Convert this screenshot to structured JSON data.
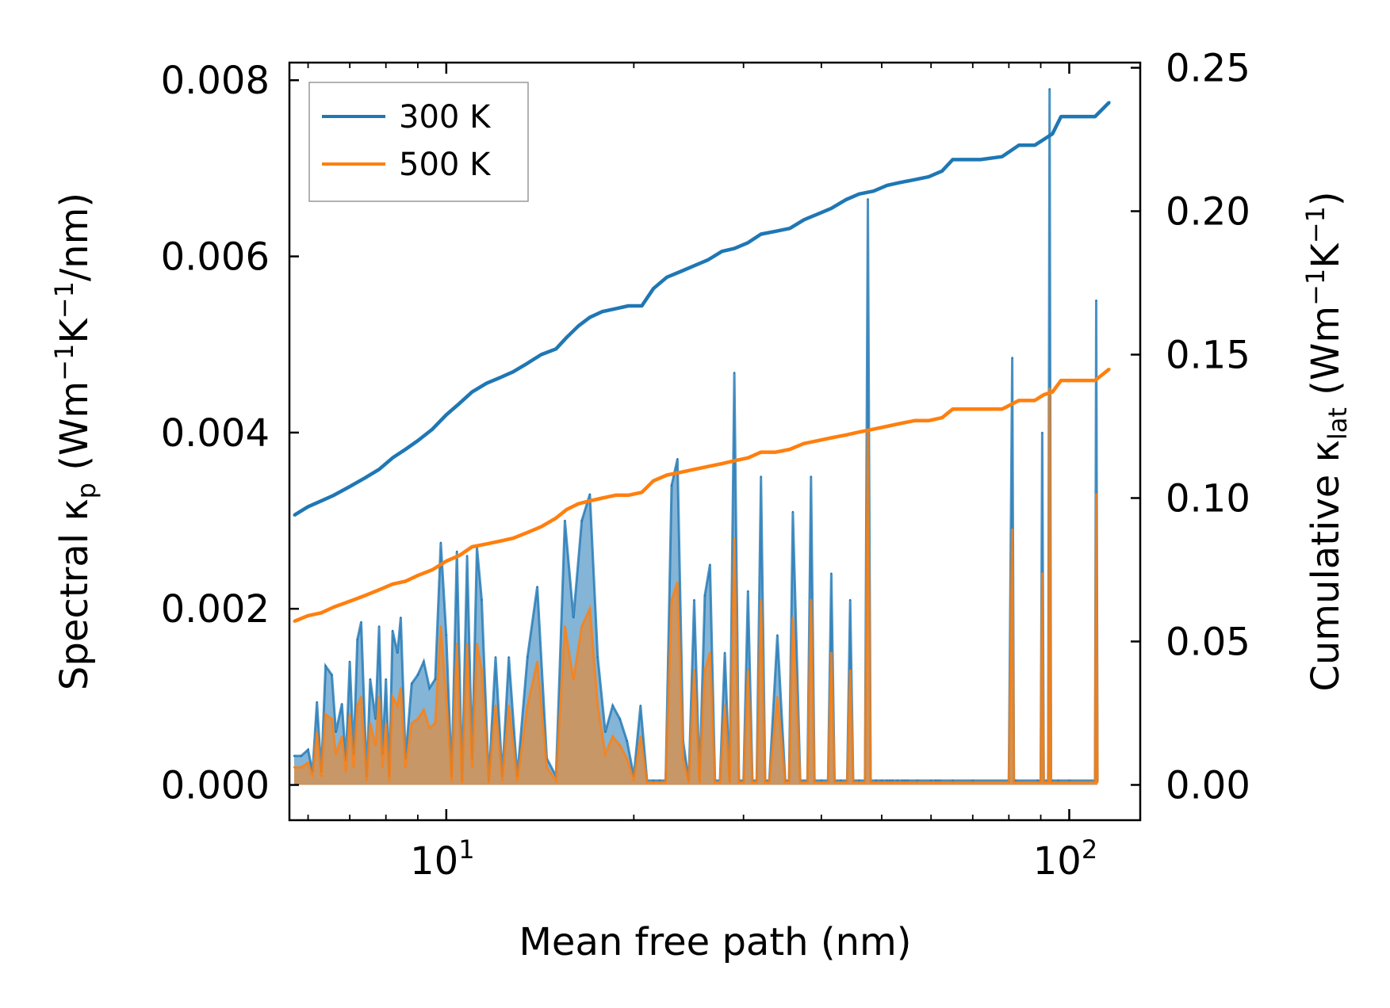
{
  "chart_data": {
    "type": "line",
    "title": "",
    "xlabel": "Mean free path (nm)",
    "xscale": "log",
    "xlim": [
      5.6,
      130
    ],
    "x_ticks": [
      {
        "value": 10,
        "base": "10",
        "exp": "1"
      },
      {
        "value": 100,
        "base": "10",
        "exp": "2"
      }
    ],
    "y_left": {
      "label": {
        "pre": "Spectral κ",
        "sub": "p",
        "post_a": " (Wm",
        "sup1": "−1",
        "post_b": "K",
        "sup2": "−1",
        "post_c": "/nm)"
      },
      "ylim": [
        -0.0004,
        0.0082
      ],
      "ticks": [
        0.0,
        0.002,
        0.004,
        0.006,
        0.008
      ],
      "tick_labels": [
        "0.000",
        "0.002",
        "0.004",
        "0.006",
        "0.008"
      ]
    },
    "y_right": {
      "label": {
        "pre": "Cumulative κ",
        "sub": "lat",
        "post_a": " (Wm",
        "sup1": "−1",
        "post_b": "K",
        "sup2": "−1",
        "post_c": ")"
      },
      "ylim": [
        -0.0123,
        0.2518
      ],
      "ticks": [
        0.0,
        0.05,
        0.1,
        0.15,
        0.2,
        0.25
      ],
      "tick_labels": [
        "0.00",
        "0.05",
        "0.10",
        "0.15",
        "0.20",
        "0.25"
      ]
    },
    "legend": {
      "position": "top-left",
      "entries": [
        {
          "name": "300 K",
          "color": "#1f77b4"
        },
        {
          "name": "500 K",
          "color": "#ff7f0e"
        }
      ]
    },
    "series": [
      {
        "name": "300 K",
        "color": "#1f77b4",
        "kind": "cumulative",
        "axis": "right",
        "x": [
          5.7,
          6.0,
          6.3,
          6.6,
          7.0,
          7.4,
          7.8,
          8.2,
          8.6,
          9.0,
          9.5,
          10.0,
          10.5,
          11.0,
          11.6,
          12.2,
          12.8,
          13.5,
          14.2,
          15.0,
          15.6,
          16.3,
          17.0,
          17.8,
          18.7,
          19.6,
          20.6,
          21.5,
          22.6,
          23.8,
          25.0,
          26.3,
          27.7,
          29.0,
          30.5,
          32.0,
          33.8,
          35.6,
          37.5,
          39.5,
          41.5,
          43.8,
          46.0,
          48.5,
          51.0,
          53.5,
          56.5,
          59.5,
          62.5,
          65.0,
          72.0,
          78.0,
          83.0,
          88.0,
          91.0,
          94.0,
          97.0,
          100.0,
          105.0,
          110.0,
          116.0
        ],
        "y": [
          0.094,
          0.097,
          0.099,
          0.101,
          0.104,
          0.107,
          0.11,
          0.114,
          0.117,
          0.12,
          0.124,
          0.129,
          0.133,
          0.137,
          0.14,
          0.142,
          0.144,
          0.147,
          0.15,
          0.152,
          0.156,
          0.16,
          0.163,
          0.165,
          0.166,
          0.167,
          0.167,
          0.173,
          0.177,
          0.179,
          0.181,
          0.183,
          0.186,
          0.187,
          0.189,
          0.192,
          0.193,
          0.194,
          0.197,
          0.199,
          0.201,
          0.204,
          0.206,
          0.207,
          0.209,
          0.21,
          0.211,
          0.212,
          0.214,
          0.218,
          0.218,
          0.219,
          0.223,
          0.223,
          0.225,
          0.227,
          0.233,
          0.233,
          0.233,
          0.233,
          0.238
        ]
      },
      {
        "name": "500 K",
        "color": "#ff7f0e",
        "kind": "cumulative",
        "axis": "right",
        "x": [
          5.7,
          6.0,
          6.3,
          6.6,
          7.0,
          7.4,
          7.8,
          8.2,
          8.6,
          9.0,
          9.5,
          10.0,
          10.5,
          11.0,
          11.6,
          12.2,
          12.8,
          13.5,
          14.2,
          15.0,
          15.6,
          16.3,
          17.0,
          17.8,
          18.7,
          19.6,
          20.6,
          21.5,
          22.6,
          23.8,
          25.0,
          26.3,
          27.7,
          29.0,
          30.5,
          32.0,
          33.8,
          35.6,
          37.5,
          39.5,
          41.5,
          43.8,
          46.0,
          48.5,
          51.0,
          53.5,
          56.5,
          59.5,
          62.5,
          65.0,
          72.0,
          78.0,
          83.0,
          88.0,
          91.0,
          94.0,
          97.0,
          100.0,
          105.0,
          110.0,
          116.0
        ],
        "y": [
          0.057,
          0.059,
          0.06,
          0.062,
          0.064,
          0.066,
          0.068,
          0.07,
          0.071,
          0.073,
          0.075,
          0.078,
          0.08,
          0.083,
          0.084,
          0.085,
          0.086,
          0.088,
          0.09,
          0.093,
          0.096,
          0.098,
          0.099,
          0.1,
          0.101,
          0.101,
          0.102,
          0.106,
          0.108,
          0.109,
          0.11,
          0.111,
          0.112,
          0.113,
          0.114,
          0.116,
          0.116,
          0.117,
          0.119,
          0.12,
          0.121,
          0.122,
          0.123,
          0.124,
          0.125,
          0.126,
          0.127,
          0.127,
          0.128,
          0.131,
          0.131,
          0.131,
          0.134,
          0.134,
          0.136,
          0.137,
          0.141,
          0.141,
          0.141,
          0.141,
          0.145
        ]
      },
      {
        "name": "300 K spectral",
        "color": "#1f77b4",
        "kind": "spectral",
        "axis": "left",
        "x": [
          5.7,
          5.85,
          6.0,
          6.1,
          6.2,
          6.3,
          6.4,
          6.55,
          6.65,
          6.8,
          6.9,
          7.0,
          7.1,
          7.2,
          7.3,
          7.45,
          7.55,
          7.7,
          7.8,
          7.9,
          8.0,
          8.1,
          8.2,
          8.35,
          8.45,
          8.6,
          8.8,
          9.0,
          9.2,
          9.4,
          9.6,
          9.8,
          10.0,
          10.2,
          10.4,
          10.6,
          10.8,
          11.0,
          11.2,
          11.4,
          11.7,
          12.0,
          12.3,
          12.6,
          13.0,
          13.5,
          14.0,
          14.5,
          15.0,
          15.5,
          16.0,
          16.5,
          17.0,
          17.5,
          18.0,
          18.5,
          19.0,
          19.5,
          20.0,
          20.5,
          21.0,
          21.5,
          22.0,
          22.5,
          23.0,
          23.5,
          24.0,
          24.5,
          25.0,
          25.5,
          26.0,
          26.5,
          27.0,
          27.5,
          28.0,
          28.5,
          29.0,
          29.5,
          30.0,
          30.5,
          31.0,
          31.5,
          32.0,
          32.5,
          33.0,
          34.0,
          35.0,
          35.5,
          36.0,
          37.0,
          38.0,
          38.5,
          39.0,
          40.0,
          41.0,
          41.5,
          42.0,
          43.0,
          44.0,
          44.5,
          45.0,
          46.0,
          47.0,
          47.5,
          48.0,
          49.0,
          50.0,
          51.0,
          51.5,
          52.0,
          53.0,
          54.0,
          54.5,
          55.0,
          57.0,
          60.0,
          61.0,
          61.5,
          62.0,
          65.0,
          70.0,
          80.0,
          81.0,
          81.5,
          82.0,
          89.0,
          90.0,
          90.5,
          91.0,
          92.5,
          93.0,
          93.5,
          94.0,
          96.0,
          100.0,
          110.0,
          110.5,
          111.0
        ],
        "y": [
          0.00033,
          0.00033,
          0.0004,
          0.00015,
          0.00094,
          0.00015,
          0.00135,
          0.00125,
          0.0006,
          0.00092,
          0.00028,
          0.0014,
          0.00035,
          0.00165,
          0.00185,
          0.0001,
          0.0012,
          0.00075,
          0.0018,
          0.00035,
          0.0012,
          0.0001,
          0.00175,
          0.0015,
          0.0019,
          0.0003,
          0.00115,
          0.00125,
          0.0014,
          0.0011,
          0.0012,
          0.00275,
          0.0017,
          0.0001,
          0.00265,
          5e-05,
          0.0026,
          0.0003,
          0.0027,
          0.0021,
          5e-05,
          0.00145,
          0.0001,
          0.00145,
          0.0001,
          0.00145,
          0.00225,
          0.0003,
          0.0001,
          0.003,
          0.0019,
          0.003,
          0.0033,
          0.00145,
          0.0006,
          0.0009,
          0.00075,
          0.0005,
          0.0001,
          0.0009,
          5e-05,
          5e-05,
          5e-05,
          5e-05,
          0.0034,
          0.0037,
          0.0005,
          5e-05,
          0.0021,
          5e-05,
          0.00215,
          0.0025,
          5e-05,
          5e-05,
          0.0015,
          5e-05,
          0.00468,
          5e-05,
          5e-05,
          0.0022,
          5e-05,
          5e-05,
          0.0035,
          5e-05,
          5e-05,
          0.0017,
          5e-05,
          5e-05,
          0.0031,
          5e-05,
          5e-05,
          0.0035,
          5e-05,
          5e-05,
          5e-05,
          0.0024,
          5e-05,
          5e-05,
          5e-05,
          0.0021,
          5e-05,
          5e-05,
          5e-05,
          0.00665,
          5e-05,
          5e-05,
          5e-05,
          5e-05,
          5e-05,
          5e-05,
          5e-05,
          5e-05,
          5e-05,
          5e-05,
          5e-05,
          5e-05,
          5e-05,
          5e-05,
          5e-05,
          5e-05,
          5e-05,
          5e-05,
          0.00485,
          5e-05,
          5e-05,
          5e-05,
          5e-05,
          0.004,
          5e-05,
          5e-05,
          0.0079,
          5e-05,
          5e-05,
          5e-05,
          5e-05,
          5e-05,
          0.0055,
          5e-05
        ]
      },
      {
        "name": "500 K spectral",
        "color": "#ff7f0e",
        "kind": "spectral",
        "axis": "left",
        "x": [
          5.7,
          5.85,
          6.0,
          6.1,
          6.2,
          6.3,
          6.4,
          6.55,
          6.65,
          6.8,
          6.9,
          7.0,
          7.1,
          7.2,
          7.3,
          7.45,
          7.55,
          7.7,
          7.8,
          7.9,
          8.0,
          8.1,
          8.2,
          8.35,
          8.45,
          8.6,
          8.8,
          9.0,
          9.2,
          9.4,
          9.6,
          9.8,
          10.0,
          10.2,
          10.4,
          10.6,
          10.8,
          11.0,
          11.2,
          11.4,
          11.7,
          12.0,
          12.3,
          12.6,
          13.0,
          13.5,
          14.0,
          14.5,
          15.0,
          15.5,
          16.0,
          16.5,
          17.0,
          17.5,
          18.0,
          18.5,
          19.0,
          19.5,
          20.0,
          20.5,
          21.0,
          21.5,
          22.0,
          22.5,
          23.0,
          23.5,
          24.0,
          24.5,
          25.0,
          25.5,
          26.0,
          26.5,
          27.0,
          27.5,
          28.0,
          28.5,
          29.0,
          29.5,
          30.0,
          30.5,
          31.0,
          31.5,
          32.0,
          32.5,
          33.0,
          34.0,
          35.0,
          35.5,
          36.0,
          37.0,
          38.0,
          38.5,
          39.0,
          40.0,
          41.0,
          41.5,
          42.0,
          43.0,
          44.0,
          44.5,
          45.0,
          46.0,
          47.0,
          47.5,
          48.0,
          49.0,
          50.0,
          51.0,
          51.5,
          52.0,
          53.0,
          54.0,
          54.5,
          55.0,
          57.0,
          60.0,
          61.0,
          61.5,
          62.0,
          65.0,
          70.0,
          80.0,
          81.0,
          81.5,
          82.0,
          89.0,
          90.0,
          90.5,
          91.0,
          92.5,
          93.0,
          93.5,
          94.0,
          96.0,
          100.0,
          110.0,
          110.5,
          111.0
        ],
        "y": [
          0.0002,
          0.0002,
          0.00025,
          0.0001,
          0.0006,
          0.0001,
          0.0008,
          0.00075,
          0.00035,
          0.00055,
          0.00015,
          0.0008,
          0.0002,
          0.0009,
          0.001,
          5e-05,
          0.0007,
          0.00045,
          0.001,
          0.0002,
          0.0007,
          5e-05,
          0.001,
          0.0009,
          0.0011,
          0.0002,
          0.0007,
          0.00075,
          0.00085,
          0.00065,
          0.0007,
          0.0018,
          0.001,
          5e-05,
          0.0016,
          3e-05,
          0.0016,
          0.0002,
          0.0016,
          0.0013,
          3e-05,
          0.0009,
          5e-05,
          0.0009,
          5e-05,
          0.0009,
          0.0014,
          0.0002,
          5e-05,
          0.0018,
          0.0012,
          0.0018,
          0.002,
          0.0009,
          0.00035,
          0.00055,
          0.00045,
          0.0003,
          5e-05,
          0.00055,
          3e-05,
          3e-05,
          3e-05,
          3e-05,
          0.0021,
          0.0023,
          0.0003,
          3e-05,
          0.0013,
          3e-05,
          0.0013,
          0.0015,
          3e-05,
          3e-05,
          0.0009,
          3e-05,
          0.0028,
          3e-05,
          3e-05,
          0.0013,
          3e-05,
          3e-05,
          0.0021,
          3e-05,
          3e-05,
          0.001,
          3e-05,
          3e-05,
          0.0019,
          3e-05,
          3e-05,
          0.0021,
          3e-05,
          3e-05,
          3e-05,
          0.0015,
          3e-05,
          3e-05,
          3e-05,
          0.0013,
          3e-05,
          3e-05,
          3e-05,
          0.004,
          3e-05,
          3e-05,
          3e-05,
          3e-05,
          3e-05,
          3e-05,
          3e-05,
          3e-05,
          3e-05,
          3e-05,
          3e-05,
          3e-05,
          3e-05,
          3e-05,
          3e-05,
          3e-05,
          3e-05,
          3e-05,
          0.0029,
          3e-05,
          3e-05,
          3e-05,
          3e-05,
          0.0024,
          3e-05,
          3e-05,
          0.0045,
          3e-05,
          3e-05,
          3e-05,
          3e-05,
          3e-05,
          0.0033,
          3e-05
        ]
      }
    ]
  }
}
